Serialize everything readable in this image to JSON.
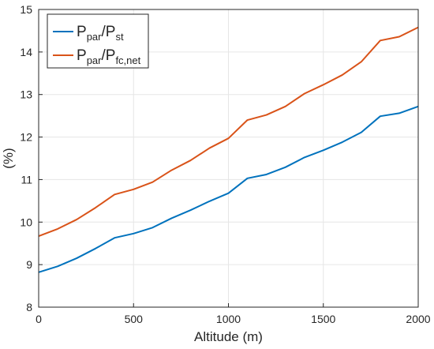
{
  "chart_data": {
    "type": "line",
    "xlabel": "Altitude (m)",
    "ylabel": "(%)",
    "xlim": [
      0,
      2000
    ],
    "ylim": [
      8,
      15
    ],
    "xticks": [
      0,
      500,
      1000,
      1500,
      2000
    ],
    "yticks": [
      8,
      9,
      10,
      11,
      12,
      13,
      14,
      15
    ],
    "grid": true,
    "legend_position": "top-left",
    "x": [
      0,
      100,
      200,
      300,
      400,
      500,
      600,
      700,
      800,
      900,
      1000,
      1100,
      1200,
      1300,
      1400,
      1500,
      1600,
      1700,
      1800,
      1900,
      2000
    ],
    "series": [
      {
        "name": "Ppar/Pst",
        "legend": {
          "main1": "P",
          "sub1": "par",
          "main2": "/P",
          "sub2": "st"
        },
        "color": "#0072BD",
        "values": [
          8.82,
          8.96,
          9.15,
          9.38,
          9.63,
          9.73,
          9.87,
          10.09,
          10.28,
          10.49,
          10.68,
          11.03,
          11.12,
          11.29,
          11.52,
          11.69,
          11.88,
          12.11,
          12.49,
          12.56,
          12.72
        ]
      },
      {
        "name": "Ppar/Pfc,net",
        "legend": {
          "main1": "P",
          "sub1": "par",
          "main2": "/P",
          "sub2": "fc,net"
        },
        "color": "#D95319",
        "values": [
          9.67,
          9.84,
          10.06,
          10.34,
          10.65,
          10.77,
          10.94,
          11.22,
          11.45,
          11.74,
          11.97,
          12.4,
          12.52,
          12.72,
          13.02,
          13.23,
          13.46,
          13.77,
          14.27,
          14.36,
          14.58
        ]
      }
    ]
  }
}
